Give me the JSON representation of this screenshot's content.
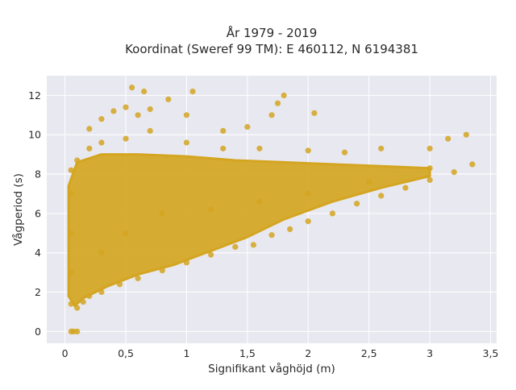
{
  "chart_data": {
    "type": "scatter",
    "title_lines": [
      "År 1979 - 2019",
      "Koordinat (Sweref 99 TM): E 460112, N 6194381"
    ],
    "xlabel": "Signifikant våghöjd (m)",
    "ylabel": "Vågperiod (s)",
    "xlim": [
      -0.15,
      3.55
    ],
    "ylim": [
      -0.6,
      13.0
    ],
    "x_ticks": [
      0,
      0.5,
      1,
      1.5,
      2,
      2.5,
      3,
      3.5
    ],
    "x_tick_labels": [
      "0",
      "0,5",
      "1",
      "1,5",
      "2",
      "2,5",
      "3",
      "3,5"
    ],
    "y_ticks": [
      0,
      2,
      4,
      6,
      8,
      10,
      12
    ],
    "y_tick_labels": [
      "0",
      "2",
      "4",
      "6",
      "8",
      "10",
      "12"
    ],
    "grid": true,
    "legend": "none",
    "background_color": "#e8e8f0",
    "marker_color": "#d4a521",
    "series": [
      {
        "points": [
          [
            0.05,
            0.0
          ],
          [
            0.07,
            0.0
          ],
          [
            0.1,
            0.0
          ],
          [
            0.05,
            1.4
          ],
          [
            0.1,
            1.2
          ],
          [
            0.15,
            1.5
          ],
          [
            0.2,
            1.8
          ],
          [
            0.3,
            2.0
          ],
          [
            0.45,
            2.4
          ],
          [
            0.6,
            2.7
          ],
          [
            0.8,
            3.1
          ],
          [
            1.0,
            3.5
          ],
          [
            1.2,
            3.9
          ],
          [
            1.4,
            4.3
          ],
          [
            1.55,
            4.4
          ],
          [
            1.7,
            4.9
          ],
          [
            1.85,
            5.2
          ],
          [
            2.0,
            5.6
          ],
          [
            2.2,
            6.0
          ],
          [
            2.4,
            6.5
          ],
          [
            2.6,
            6.9
          ],
          [
            2.8,
            7.3
          ],
          [
            3.0,
            7.7
          ],
          [
            3.2,
            8.1
          ],
          [
            3.35,
            8.5
          ],
          [
            0.05,
            3.0
          ],
          [
            0.05,
            5.0
          ],
          [
            0.05,
            7.0
          ],
          [
            0.05,
            8.2
          ],
          [
            0.1,
            8.7
          ],
          [
            0.2,
            9.3
          ],
          [
            0.3,
            9.6
          ],
          [
            0.5,
            9.8
          ],
          [
            0.7,
            10.2
          ],
          [
            1.0,
            9.6
          ],
          [
            1.3,
            9.3
          ],
          [
            1.6,
            9.3
          ],
          [
            2.0,
            9.2
          ],
          [
            2.3,
            9.1
          ],
          [
            2.6,
            9.3
          ],
          [
            3.0,
            9.3
          ],
          [
            3.15,
            9.8
          ],
          [
            3.3,
            10.0
          ],
          [
            0.2,
            10.3
          ],
          [
            0.3,
            10.8
          ],
          [
            0.4,
            11.2
          ],
          [
            0.5,
            11.4
          ],
          [
            0.6,
            11.0
          ],
          [
            0.7,
            11.3
          ],
          [
            0.55,
            12.4
          ],
          [
            0.65,
            12.2
          ],
          [
            0.85,
            11.8
          ],
          [
            1.05,
            12.2
          ],
          [
            1.0,
            11.0
          ],
          [
            1.3,
            10.2
          ],
          [
            1.5,
            10.4
          ],
          [
            1.7,
            11.0
          ],
          [
            1.75,
            11.6
          ],
          [
            1.8,
            12.0
          ],
          [
            2.05,
            11.1
          ],
          [
            0.3,
            4.0
          ],
          [
            0.5,
            5.0
          ],
          [
            0.8,
            6.0
          ],
          [
            1.2,
            6.2
          ],
          [
            1.6,
            6.6
          ],
          [
            2.0,
            7.0
          ],
          [
            2.5,
            7.6
          ],
          [
            3.0,
            8.3
          ]
        ]
      }
    ]
  }
}
